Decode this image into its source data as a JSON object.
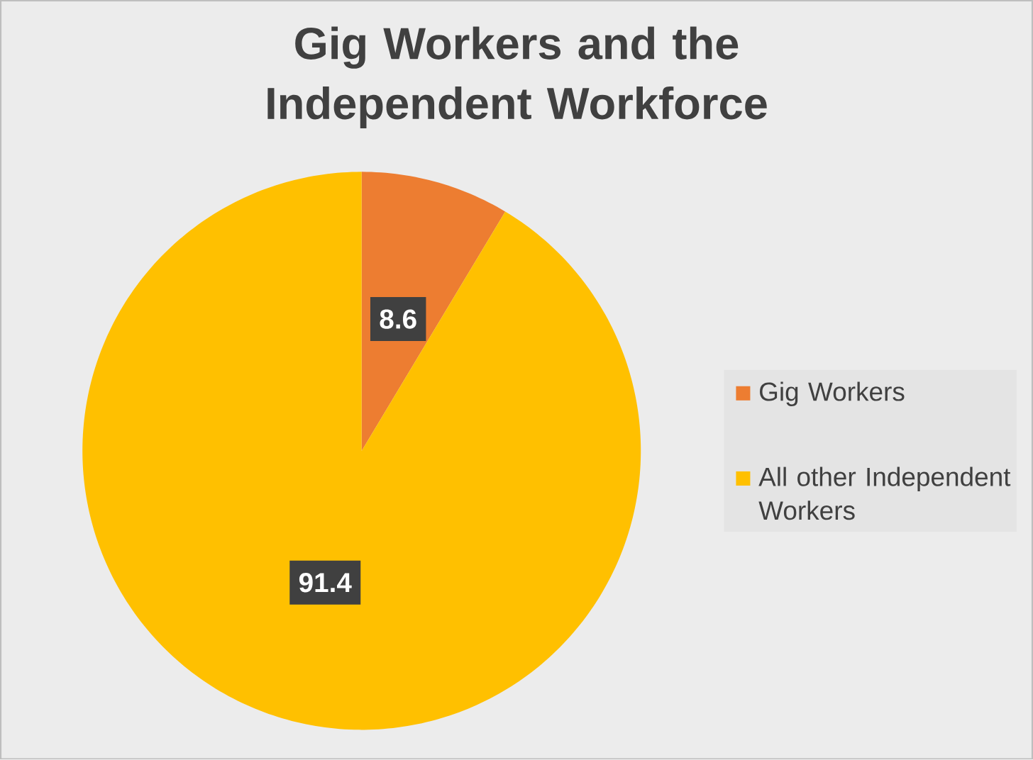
{
  "chart_data": {
    "type": "pie",
    "title": "Gig Workers and the Independent Workforce",
    "categories": [
      "Gig Workers",
      "All other Independent Workers"
    ],
    "values": [
      8.6,
      91.4
    ],
    "colors": [
      "#ed7d31",
      "#ffc000"
    ],
    "data_labels": true,
    "legend": "right"
  }
}
